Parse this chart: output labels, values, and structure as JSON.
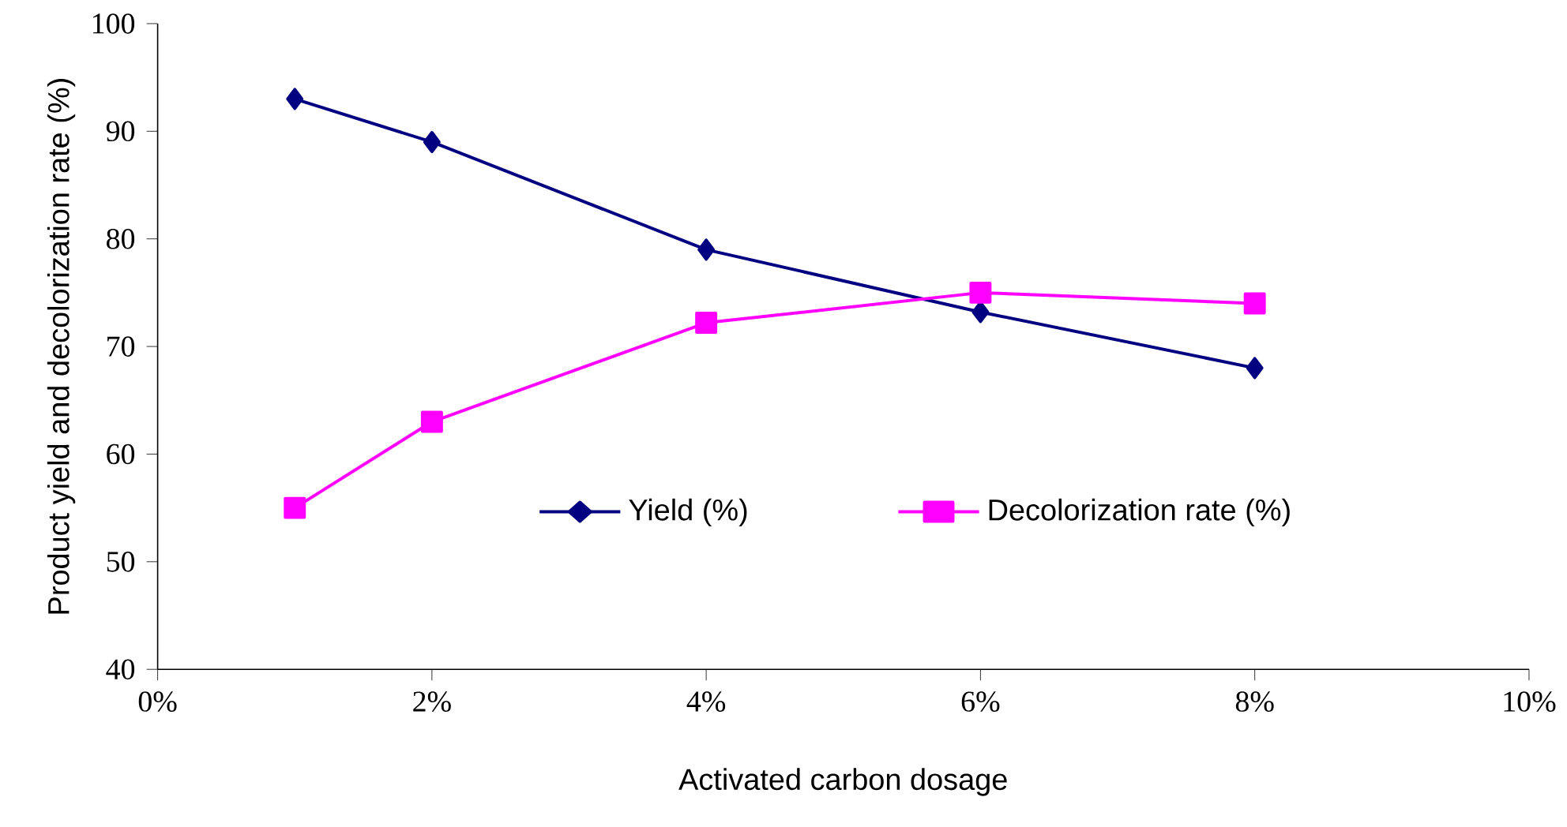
{
  "chart_data": {
    "type": "line",
    "xlabel": "Activated carbon dosage",
    "ylabel": "Product yield and decolorization rate (%)",
    "x": [
      1,
      2,
      4,
      6,
      8
    ],
    "series": [
      {
        "name": "Yield (%)",
        "color": "#000080",
        "marker": "diamond",
        "values": [
          93,
          89,
          79,
          73.2,
          68
        ]
      },
      {
        "name": "Decolorization rate (%)",
        "color": "#ff00ff",
        "marker": "square",
        "values": [
          55,
          63,
          72.2,
          75,
          74
        ]
      }
    ],
    "xlim": [
      0,
      10
    ],
    "xticks": [
      {
        "value": 0,
        "label": "0%"
      },
      {
        "value": 2,
        "label": "2%"
      },
      {
        "value": 4,
        "label": "4%"
      },
      {
        "value": 6,
        "label": "6%"
      },
      {
        "value": 8,
        "label": "8%"
      },
      {
        "value": 10,
        "label": "10%"
      }
    ],
    "ylim": [
      40,
      100
    ],
    "yticks": [
      40,
      50,
      60,
      70,
      80,
      90,
      100
    ],
    "grid": false,
    "legend": "center",
    "line_style": "solid"
  }
}
